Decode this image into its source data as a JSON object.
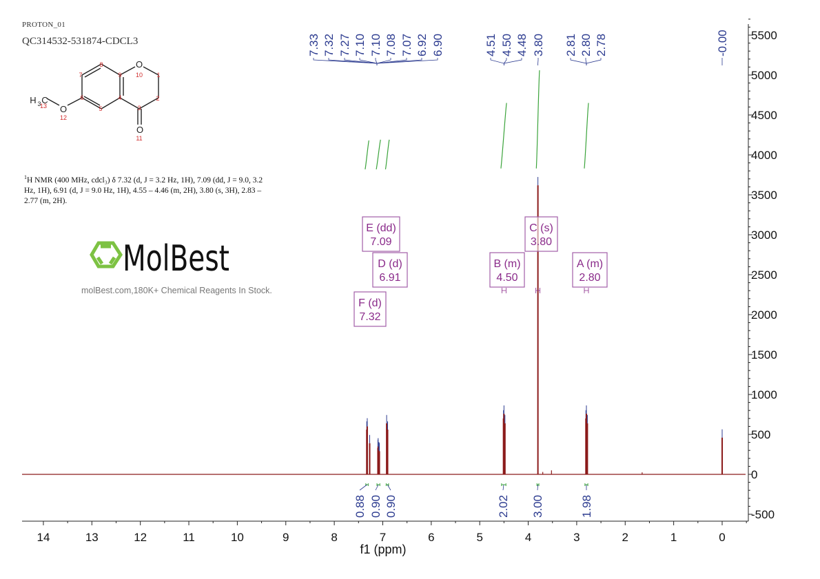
{
  "experiment": "PROTON_01",
  "sample": "QC314532-531874-CDCL3",
  "nmr_description": {
    "nucleus_sup": "1",
    "text": "H NMR (400 MHz, cdcl₃) δ 7.32 (d, J = 3.2 Hz, 1H), 7.09 (dd, J = 9.0, 3.2 Hz, 1H), 6.91 (d, J = 9.0 Hz, 1H), 4.55 – 4.46 (m, 2H), 3.80 (s, 3H), 2.83 – 2.77 (m, 2H)."
  },
  "molecule": {
    "atoms": {
      "o10": "O",
      "o11": "O",
      "o12": "O",
      "h3c": "H",
      "h3c_sub": "3",
      "h3c_c": "C"
    },
    "atom_numbers": [
      "1",
      "2",
      "3",
      "4",
      "5",
      "6",
      "7",
      "8",
      "9",
      "10",
      "11",
      "12",
      "13"
    ]
  },
  "watermark": {
    "logo_text": "MolBest",
    "tagline": "molBest.com,180K+ Chemical Reagents In Stock."
  },
  "colors": {
    "spectrum": "#8b1a1a",
    "peak_labels": "#2b3a8f",
    "integral": "#3aa33a",
    "multiplet": "#8a2a8a",
    "logo": "#7dc243"
  },
  "chart_data": {
    "type": "line",
    "xlabel": "f1 (ppm)",
    "ylabel": "",
    "xlim": [
      14.45,
      -0.5
    ],
    "x_reversed": true,
    "ylim": [
      -500,
      5700
    ],
    "x_ticks": [
      "14",
      "13",
      "12",
      "11",
      "10",
      "9",
      "8",
      "7",
      "6",
      "5",
      "4",
      "3",
      "2",
      "1",
      "0"
    ],
    "y_ticks": [
      "5500",
      "5000",
      "4500",
      "4000",
      "3500",
      "3000",
      "2500",
      "2000",
      "1500",
      "1000",
      "500",
      "0",
      "-500"
    ],
    "grid": false,
    "peaks": [
      {
        "ppm": 7.33,
        "height": 560
      },
      {
        "ppm": 7.32,
        "height": 600
      },
      {
        "ppm": 7.27,
        "height": 390
      },
      {
        "ppm": 7.1,
        "height": 330
      },
      {
        "ppm": 7.095,
        "height": 350
      },
      {
        "ppm": 7.08,
        "height": 300
      },
      {
        "ppm": 7.07,
        "height": 290
      },
      {
        "ppm": 6.92,
        "height": 640
      },
      {
        "ppm": 6.9,
        "height": 560
      },
      {
        "ppm": 4.51,
        "height": 700
      },
      {
        "ppm": 4.5,
        "height": 760
      },
      {
        "ppm": 4.48,
        "height": 640
      },
      {
        "ppm": 3.8,
        "height": 3620
      },
      {
        "ppm": 3.7,
        "height": 30
      },
      {
        "ppm": 3.52,
        "height": 50
      },
      {
        "ppm": 2.81,
        "height": 700
      },
      {
        "ppm": 2.8,
        "height": 760
      },
      {
        "ppm": 2.78,
        "height": 640
      },
      {
        "ppm": 1.65,
        "height": 25
      },
      {
        "ppm": 0.0,
        "height": 460
      }
    ],
    "peak_label_groups": [
      {
        "labels": [
          "7.33",
          "7.32",
          "7.27",
          "7.10",
          "7.10",
          "7.08",
          "7.07",
          "6.92",
          "6.90"
        ],
        "center": 7.12
      },
      {
        "labels": [
          "4.51",
          "4.50",
          "4.48"
        ],
        "center": 4.5
      },
      {
        "labels": [
          "3.80"
        ],
        "center": 3.8
      },
      {
        "labels": [
          "2.81",
          "2.80",
          "2.78"
        ],
        "center": 2.8
      },
      {
        "labels": [
          "-0.00"
        ],
        "center": 0.0
      }
    ],
    "integrals": [
      {
        "from": 7.35,
        "to": 7.3,
        "value": "0.88"
      },
      {
        "from": 7.12,
        "to": 7.06,
        "value": "0.90"
      },
      {
        "from": 6.93,
        "to": 6.88,
        "value": "0.90"
      },
      {
        "from": 4.55,
        "to": 4.46,
        "value": "2.02"
      },
      {
        "from": 3.82,
        "to": 3.78,
        "value": "3.00"
      },
      {
        "from": 2.83,
        "to": 2.77,
        "value": "1.98"
      }
    ],
    "multiplets": [
      {
        "label": "E (dd)",
        "shift": "7.09"
      },
      {
        "label": "D (d)",
        "shift": "6.91"
      },
      {
        "label": "F (d)",
        "shift": "7.32"
      },
      {
        "label": "C (s)",
        "shift": "3.80"
      },
      {
        "label": "B (m)",
        "shift": "4.50"
      },
      {
        "label": "A (m)",
        "shift": "2.80"
      }
    ]
  }
}
